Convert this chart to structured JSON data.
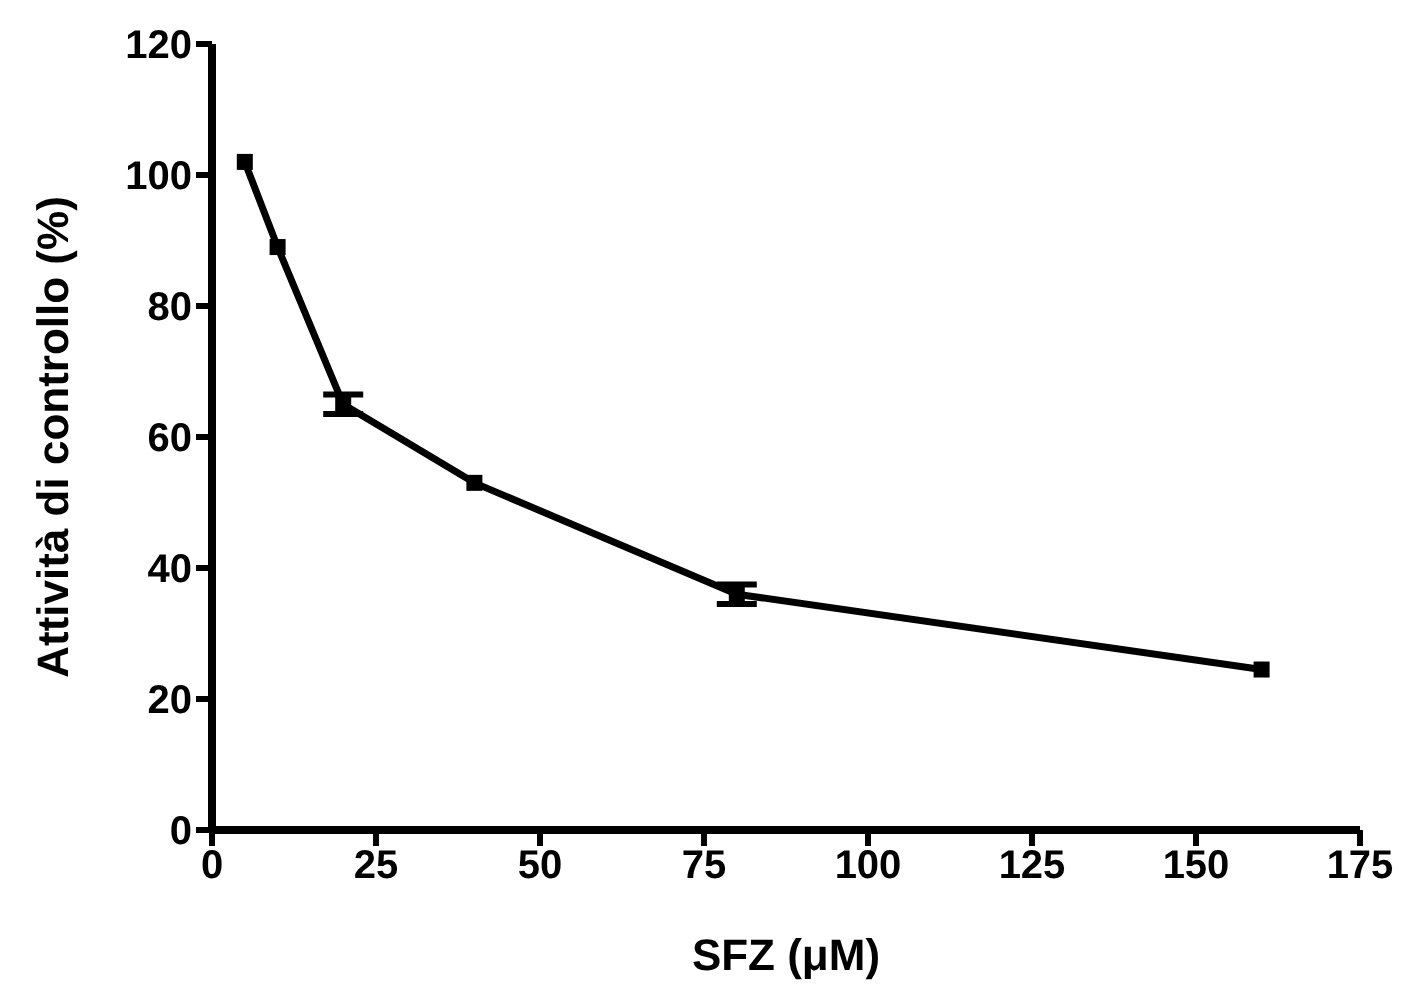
{
  "chart_data": {
    "type": "line",
    "xlabel": "SFZ (μM)",
    "ylabel": "Attività di controllo (%)",
    "x": [
      5,
      10,
      20,
      40,
      80,
      160
    ],
    "series": [
      {
        "color": "#000000",
        "values": [
          102,
          89,
          65,
          53,
          36,
          24.5
        ],
        "errors": [
          null,
          null,
          1.5,
          null,
          1.5,
          null
        ]
      }
    ],
    "xlim": [
      0,
      175
    ],
    "xticks": [
      0,
      25,
      50,
      75,
      100,
      125,
      150,
      175
    ],
    "ylim": [
      0,
      120
    ],
    "yticks": [
      0,
      20,
      40,
      60,
      80,
      100,
      120
    ],
    "grid": false,
    "legend": false,
    "marker": "square",
    "line_style": "solid"
  }
}
